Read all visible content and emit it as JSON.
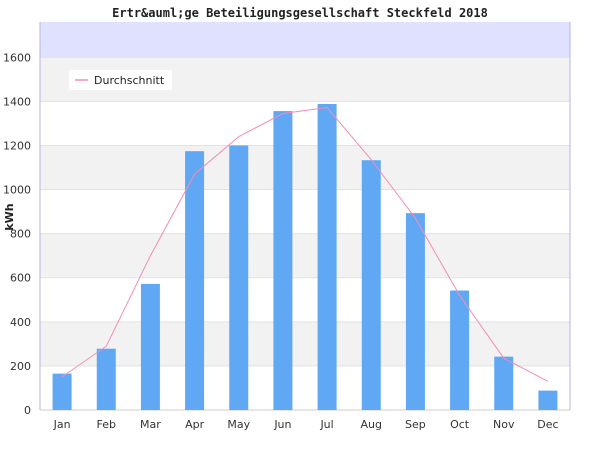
{
  "chart_data": {
    "type": "bar",
    "title": "Ertr&auml;ge Beteiligungsgesellschaft Steckfeld 2018",
    "ylabel": "kWh",
    "xlabel": "",
    "categories": [
      "Jan",
      "Feb",
      "Mar",
      "Apr",
      "May",
      "Jun",
      "Jul",
      "Aug",
      "Sep",
      "Oct",
      "Nov",
      "Dec"
    ],
    "values": [
      165,
      278,
      572,
      1174,
      1200,
      1356,
      1388,
      1133,
      893,
      542,
      242,
      88
    ],
    "average_line": {
      "name": "Durchschnitt",
      "type": "line",
      "values": [
        150,
        290,
        700,
        1070,
        1240,
        1345,
        1372,
        1135,
        870,
        520,
        235,
        130
      ]
    },
    "ylim": [
      0,
      1760
    ],
    "yticks": [
      0,
      200,
      400,
      600,
      800,
      1000,
      1200,
      1400,
      1600
    ],
    "grid": true,
    "legend_position": "top-left",
    "colors": {
      "bar": "#60a8f4",
      "line": "#f48cb8",
      "band_a": "#f2f2f2",
      "band_b": "#ffffff",
      "top_band": "#e0e0ff",
      "axis": "#b4b4e6"
    }
  }
}
